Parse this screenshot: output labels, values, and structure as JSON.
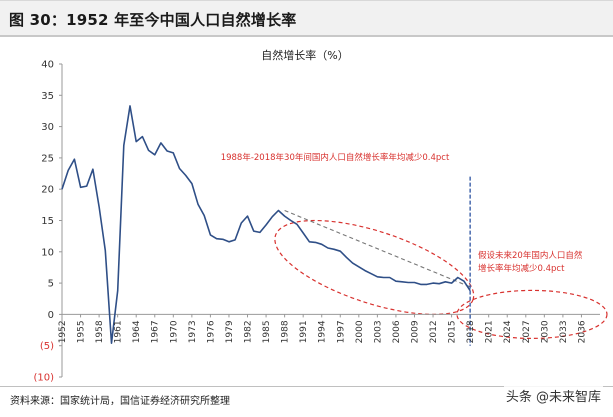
{
  "figure_title": "图 30：1952 年至今中国人口自然增长率",
  "source_note": "资料来源：国家统计局，国信证券经济研究所整理",
  "watermark": "头条 @未来智库",
  "colors": {
    "line": "#2f4f87",
    "annotation": "#d8322f",
    "trend": "#777777",
    "divider": "#3b5fa8"
  },
  "chart_data": {
    "type": "line",
    "title": "自然增长率（%）",
    "ylim": [
      -10,
      40
    ],
    "y_ticks": [
      {
        "value": 40,
        "label": "40"
      },
      {
        "value": 35,
        "label": "35"
      },
      {
        "value": 30,
        "label": "30"
      },
      {
        "value": 25,
        "label": "25"
      },
      {
        "value": 20,
        "label": "20"
      },
      {
        "value": 15,
        "label": "15"
      },
      {
        "value": 10,
        "label": "10"
      },
      {
        "value": 5,
        "label": "5"
      },
      {
        "value": 0,
        "label": "0"
      },
      {
        "value": -5,
        "label": "(5)"
      },
      {
        "value": -10,
        "label": "(10)"
      }
    ],
    "xlim": [
      1952,
      2039
    ],
    "x_ticks": [
      1952,
      1955,
      1958,
      1961,
      1964,
      1967,
      1970,
      1973,
      1976,
      1979,
      1982,
      1985,
      1988,
      1991,
      1994,
      1997,
      2000,
      2003,
      2006,
      2009,
      2012,
      2015,
      2018,
      2021,
      2024,
      2027,
      2030,
      2033,
      2036
    ],
    "grid": false,
    "x": [
      1952,
      1953,
      1954,
      1955,
      1956,
      1957,
      1958,
      1959,
      1960,
      1961,
      1962,
      1963,
      1964,
      1965,
      1966,
      1967,
      1968,
      1969,
      1970,
      1971,
      1972,
      1973,
      1974,
      1975,
      1976,
      1977,
      1978,
      1979,
      1980,
      1981,
      1982,
      1983,
      1984,
      1985,
      1986,
      1987,
      1988,
      1989,
      1990,
      1991,
      1992,
      1993,
      1994,
      1995,
      1996,
      1997,
      1998,
      1999,
      2000,
      2001,
      2002,
      2003,
      2004,
      2005,
      2006,
      2007,
      2008,
      2009,
      2010,
      2011,
      2012,
      2013,
      2014,
      2015,
      2016,
      2017,
      2018
    ],
    "series": [
      {
        "values": [
          20.0,
          23.0,
          24.8,
          20.3,
          20.5,
          23.2,
          17.2,
          10.2,
          -4.6,
          3.8,
          27.0,
          33.3,
          27.6,
          28.4,
          26.2,
          25.5,
          27.4,
          26.1,
          25.8,
          23.3,
          22.2,
          20.9,
          17.6,
          15.8,
          12.7,
          12.1,
          12.0,
          11.6,
          11.9,
          14.6,
          15.7,
          13.3,
          13.1,
          14.3,
          15.6,
          16.6,
          15.7,
          15.0,
          14.4,
          13.0,
          11.6,
          11.5,
          11.2,
          10.6,
          10.4,
          10.1,
          9.1,
          8.2,
          7.6,
          7.0,
          6.5,
          6.0,
          5.9,
          5.9,
          5.3,
          5.2,
          5.1,
          5.1,
          4.8,
          4.8,
          5.0,
          4.9,
          5.2,
          5.0,
          5.9,
          5.3,
          3.8
        ]
      }
    ],
    "annotations": [
      {
        "id": "historic",
        "label": "1988年-2018年30年间国内人口自然增长率年均减少0.4pct"
      },
      {
        "id": "forecast",
        "label_lines": [
          "假设未来20年国内人口自然",
          "增长率年均减少0.4pct"
        ]
      }
    ],
    "divider_year": 2018,
    "trend_line": {
      "from": [
        1988,
        16.6
      ],
      "to": [
        2018,
        4.4
      ]
    }
  }
}
